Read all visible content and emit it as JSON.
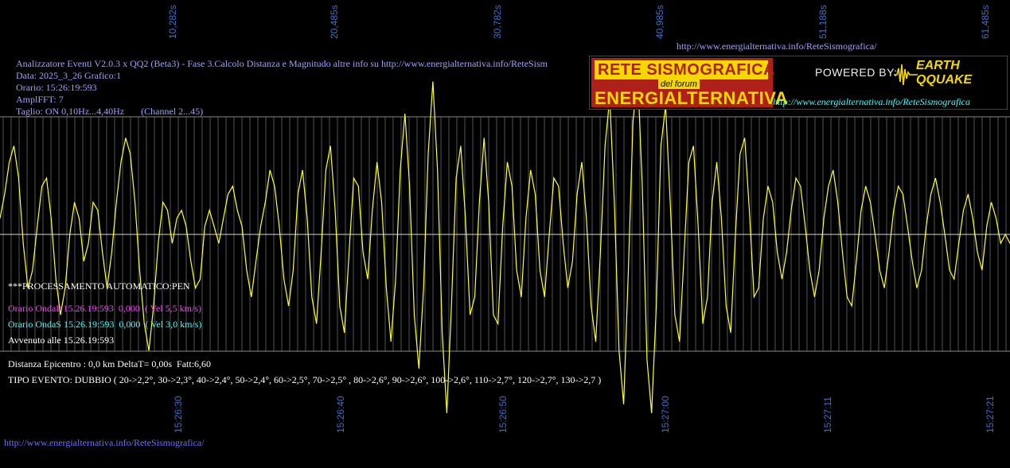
{
  "header": {
    "title_line": "Analizzatore Eventi V2.0.3 x QQ2 (Beta3) - Fase 3.Calcolo Distanza e Magnitudo altre info su http://www.energialternativa.info/ReteSism",
    "data_line": "Data: 2025_3_26 Grafico:1",
    "orario_line": "Orario: 15:26:19:593",
    "ampl_line": "AmplFFT: 7",
    "taglio_line": "Taglio: ON 0,10Hz...4,40Hz       (Channel 2...45)",
    "top_url": "http://www.energialternativa.info/ReteSismografica/"
  },
  "banner": {
    "rete": "RETE SISMOGRAFICA",
    "forum": "del forum",
    "energia": "ENERGIALTERNATIVA",
    "powered": "POWERED BY:",
    "earth": "EARTH",
    "qquake": "QQUAKE",
    "url": "http://www.energialternativa.info/ReteSismografica"
  },
  "status": {
    "processing": "***PROCESSAMENTO AUTOMATICO:PEN",
    "onda_p": "Orario OndaP 15.26.19:593  0,000  ( Vel 5,5 km/s)",
    "onda_s": "Orario OndaS 15.26.19:593  0,000  ( Vel 3,0 km/s)",
    "avvenuto": "Avvenuto alle 15.26.19:593",
    "distanza": "Distanza Epicentro : 0,0 km DeltaT= 0,00s  Fatt:6,60",
    "tipo": "TIPO EVENTO: DUBBIO ( 20->2,2°, 30->2,3°, 40->2,4°, 50->2,4°, 60->2,5°, 70->2,5° , 80->2,6°, 90->2,6°, 100->2,6°, 110->2,7°, 120->2,7°, 130->2,7 )"
  },
  "footer_url": "http://www.energialternativa.info/ReteSismografica/",
  "colors": {
    "trace": "#ffff33",
    "grid": "#555555",
    "baseline": "#d8d8d8",
    "tick_text": "#3a6fd0"
  },
  "chart_data": {
    "type": "line",
    "top_ticks": [
      "10,282s",
      "20,485s",
      "30,782s",
      "40,985s",
      "51,188s",
      "61,485s"
    ],
    "bottom_ticks": [
      "15:26:30",
      "15:26:40",
      "15:26:50",
      "15:27:00",
      "15:27:11",
      "15:27:21"
    ],
    "x_range_s": [
      0,
      63.8
    ],
    "y_range": [
      -1.0,
      1.0
    ],
    "grid": true,
    "series": [
      {
        "values": [
          0.1,
          0.25,
          0.45,
          0.55,
          0.35,
          -0.05,
          -0.3,
          -0.2,
          0.05,
          0.3,
          0.35,
          0.1,
          -0.25,
          -0.45,
          -0.3,
          0.0,
          0.2,
          0.1,
          -0.15,
          -0.05,
          0.2,
          0.15,
          -0.1,
          -0.3,
          -0.1,
          0.2,
          0.45,
          0.6,
          0.5,
          0.2,
          -0.2,
          -0.5,
          -0.65,
          -0.4,
          -0.05,
          0.2,
          0.15,
          -0.05,
          0.1,
          0.15,
          0.05,
          -0.15,
          -0.3,
          -0.25,
          0.05,
          0.15,
          0.05,
          -0.05,
          0.1,
          0.25,
          0.3,
          0.15,
          0.05,
          -0.2,
          -0.35,
          -0.15,
          0.05,
          0.2,
          0.4,
          0.3,
          0.05,
          -0.25,
          -0.4,
          -0.2,
          0.25,
          0.4,
          0.1,
          -0.35,
          -0.5,
          -0.1,
          0.4,
          0.55,
          0.15,
          -0.4,
          -0.55,
          -0.1,
          0.35,
          0.3,
          -0.1,
          -0.25,
          0.15,
          0.45,
          0.2,
          -0.3,
          -0.6,
          -0.25,
          0.4,
          0.75,
          0.3,
          -0.45,
          -0.75,
          -0.3,
          0.5,
          0.95,
          0.4,
          -0.55,
          -1.0,
          -0.4,
          0.35,
          0.55,
          0.1,
          -0.45,
          -0.35,
          0.2,
          0.6,
          0.2,
          -0.45,
          -0.5,
          0.05,
          0.45,
          0.3,
          -0.2,
          -0.35,
          0.1,
          0.4,
          0.25,
          -0.2,
          -0.35,
          0.0,
          0.35,
          0.3,
          -0.05,
          -0.3,
          -0.15,
          0.25,
          0.45,
          0.1,
          -0.4,
          -0.6,
          -0.1,
          0.55,
          0.85,
          0.2,
          -0.65,
          -0.95,
          -0.2,
          0.7,
          1.0,
          0.3,
          -0.7,
          -1.0,
          -0.4,
          0.55,
          0.8,
          0.2,
          -0.45,
          -0.6,
          -0.1,
          0.45,
          0.55,
          0.05,
          -0.5,
          -0.35,
          0.2,
          0.45,
          0.1,
          -0.4,
          -0.55,
          0.0,
          0.5,
          0.6,
          0.15,
          -0.35,
          -0.3,
          0.1,
          0.3,
          0.2,
          -0.1,
          -0.25,
          -0.1,
          0.15,
          0.35,
          0.3,
          0.05,
          -0.2,
          -0.35,
          -0.2,
          0.1,
          0.3,
          0.4,
          0.2,
          -0.1,
          -0.35,
          -0.4,
          -0.15,
          0.15,
          0.3,
          0.2,
          0.0,
          -0.2,
          -0.3,
          -0.1,
          0.15,
          0.3,
          0.25,
          0.05,
          -0.15,
          -0.3,
          -0.2,
          0.05,
          0.25,
          0.35,
          0.2,
          0.0,
          -0.2,
          -0.25,
          -0.05,
          0.15,
          0.25,
          0.1,
          -0.1,
          -0.2,
          0.05,
          0.2,
          0.1,
          -0.05,
          0.0,
          -0.05
        ]
      }
    ]
  }
}
